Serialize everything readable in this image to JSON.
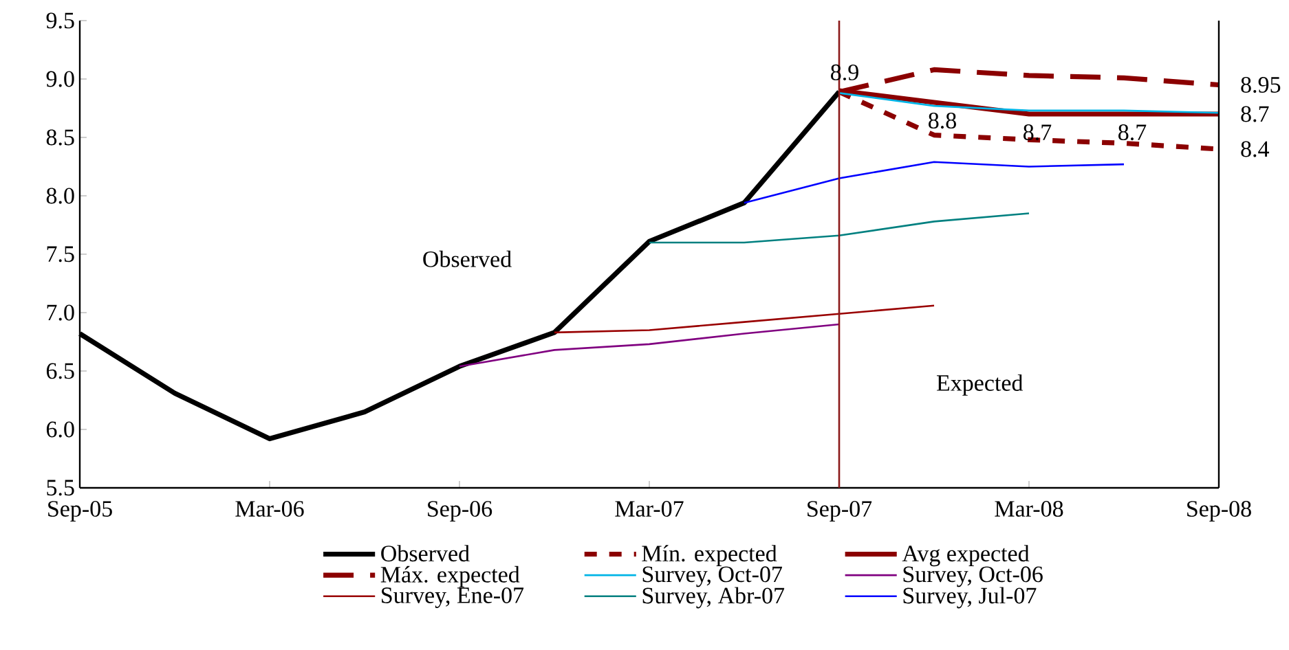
{
  "chart_data": {
    "type": "line",
    "xlim": [
      "2005-09",
      "2008-09"
    ],
    "xticks": [
      {
        "value": "2005-09",
        "label": "Sep-05"
      },
      {
        "value": "2006-03",
        "label": "Mar-06"
      },
      {
        "value": "2006-09",
        "label": "Sep-06"
      },
      {
        "value": "2007-03",
        "label": "Mar-07"
      },
      {
        "value": "2007-09",
        "label": "Sep-07"
      },
      {
        "value": "2008-03",
        "label": "Mar-08"
      },
      {
        "value": "2008-09",
        "label": "Sep-08"
      }
    ],
    "ylim": [
      5.5,
      9.5
    ],
    "yticks": [
      5.5,
      {
        "value": 6,
        "label": "6.0"
      },
      6.5,
      {
        "value": 7,
        "label": "7.0"
      },
      7.5,
      {
        "value": 8,
        "label": "8.0"
      },
      8.5,
      {
        "value": 9,
        "label": "9.0"
      },
      9.5
    ],
    "grid": false,
    "legend": "bottom",
    "series": [
      {
        "name": "Observed",
        "color": "#000000",
        "line_style": "solid",
        "x": [
          "2005-09",
          "2005-12",
          "2006-03",
          "2006-06",
          "2006-09",
          "2006-12",
          "2007-03",
          "2007-06",
          "2007-09"
        ],
        "values": [
          6.82,
          6.31,
          5.92,
          6.15,
          6.54,
          6.83,
          7.61,
          7.94,
          8.89
        ]
      },
      {
        "name": "Mín. expected",
        "color": "#8b0000",
        "line_style": "dotted",
        "x": [
          "2007-09",
          "2007-12",
          "2008-03",
          "2008-06",
          "2008-09"
        ],
        "values": [
          8.89,
          8.52,
          8.48,
          8.45,
          8.4
        ]
      },
      {
        "name": "Avg expected",
        "color": "#8b0000",
        "line_style": "solid",
        "x": [
          "2007-09",
          "2007-12",
          "2008-03",
          "2008-06",
          "2008-09"
        ],
        "values": [
          8.9,
          8.8,
          8.7,
          8.7,
          8.7
        ]
      },
      {
        "name": "Máx. expected",
        "color": "#8b0000",
        "line_style": "dashed",
        "x": [
          "2007-09",
          "2007-12",
          "2008-03",
          "2008-06",
          "2008-09"
        ],
        "values": [
          8.89,
          9.08,
          9.03,
          9.01,
          8.95
        ]
      },
      {
        "name": "Survey, Oct-07",
        "color": "#00b4e6",
        "line_style": "solid",
        "x": [
          "2007-09",
          "2007-12",
          "2008-03",
          "2008-06",
          "2008-09"
        ],
        "values": [
          8.88,
          8.77,
          8.73,
          8.73,
          8.71
        ]
      },
      {
        "name": "Survey, Oct-06",
        "color": "#800080",
        "line_style": "solid",
        "x": [
          "2006-09",
          "2006-12",
          "2007-03",
          "2007-06",
          "2007-09"
        ],
        "values": [
          6.54,
          6.68,
          6.73,
          6.82,
          6.9
        ]
      },
      {
        "name": "Survey, Ene-07",
        "color": "#990000",
        "line_style": "solid",
        "x": [
          "2006-12",
          "2007-03",
          "2007-06",
          "2007-09",
          "2007-12"
        ],
        "values": [
          6.83,
          6.85,
          6.92,
          6.99,
          7.06
        ]
      },
      {
        "name": "Survey, Abr-07",
        "color": "#008080",
        "line_style": "solid",
        "x": [
          "2007-03",
          "2007-06",
          "2007-09",
          "2007-12",
          "2008-03"
        ],
        "values": [
          7.6,
          7.6,
          7.66,
          7.78,
          7.85
        ]
      },
      {
        "name": "Survey, Jul-07",
        "color": "#0000ff",
        "line_style": "solid",
        "x": [
          "2007-06",
          "2007-09",
          "2007-12",
          "2008-03",
          "2008-06"
        ],
        "values": [
          7.94,
          8.15,
          8.29,
          8.25,
          8.27
        ]
      }
    ],
    "ref_lines": [
      {
        "axis": "x",
        "value": "2007-09",
        "color": "#8b1a1a"
      }
    ],
    "annotations": [
      "Observed",
      "Expected",
      {
        "text": "8.9",
        "x": "2007-09",
        "y": 8.9
      },
      {
        "text": "8.8",
        "x": "2007-12",
        "y": 8.8
      },
      {
        "text": "8.7",
        "x": "2008-03",
        "y": 8.7
      },
      {
        "text": "8.7",
        "x": "2008-06",
        "y": 8.7
      },
      {
        "text": "8.95",
        "x": "2008-09",
        "y": 8.95
      },
      {
        "text": "8.7",
        "x": "2008-09",
        "y": 8.7
      },
      {
        "text": "8.4",
        "x": "2008-09",
        "y": 8.4
      }
    ]
  }
}
